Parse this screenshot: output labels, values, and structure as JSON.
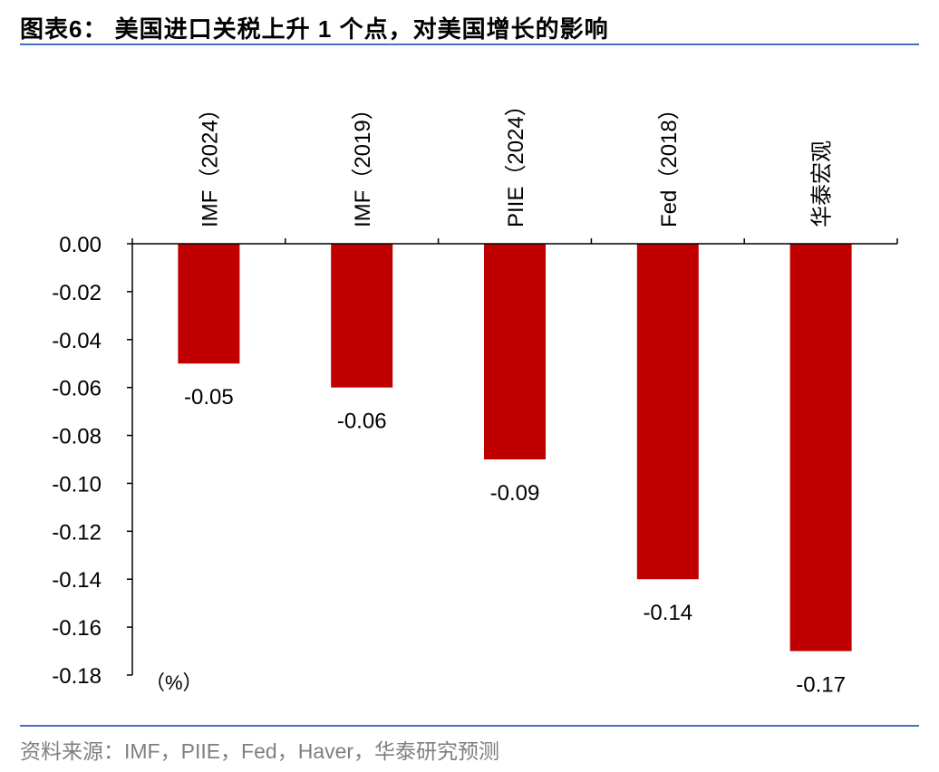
{
  "header": {
    "title": "图表6：  美国进口关税上升 1 个点，对美国增长的影响"
  },
  "footer": {
    "source": "资料来源：IMF，PIIE，Fed，Haver，华泰研究预测"
  },
  "colors": {
    "bar": "#c00000",
    "rule": "#4472c4",
    "axis": "#000000",
    "source_text": "#7f7f7f"
  },
  "chart_data": {
    "type": "bar",
    "title": "美国进口关税上升 1 个点，对美国增长的影响",
    "categories": [
      "IMF（2024）",
      "IMF（2019）",
      "PIIE（2024）",
      "Fed（2018）",
      "华泰宏观"
    ],
    "values": [
      -0.05,
      -0.06,
      -0.09,
      -0.14,
      -0.17
    ],
    "value_labels": [
      "-0.05",
      "-0.06",
      "-0.09",
      "-0.14",
      "-0.17"
    ],
    "yticks": [
      "0.00",
      "-0.02",
      "-0.04",
      "-0.06",
      "-0.08",
      "-0.10",
      "-0.12",
      "-0.14",
      "-0.16",
      "-0.18"
    ],
    "ylim": [
      -0.18,
      0
    ],
    "unit_label": "（%）",
    "category_label_position": "top, rotated vertical",
    "grid": false,
    "legend": "none"
  }
}
